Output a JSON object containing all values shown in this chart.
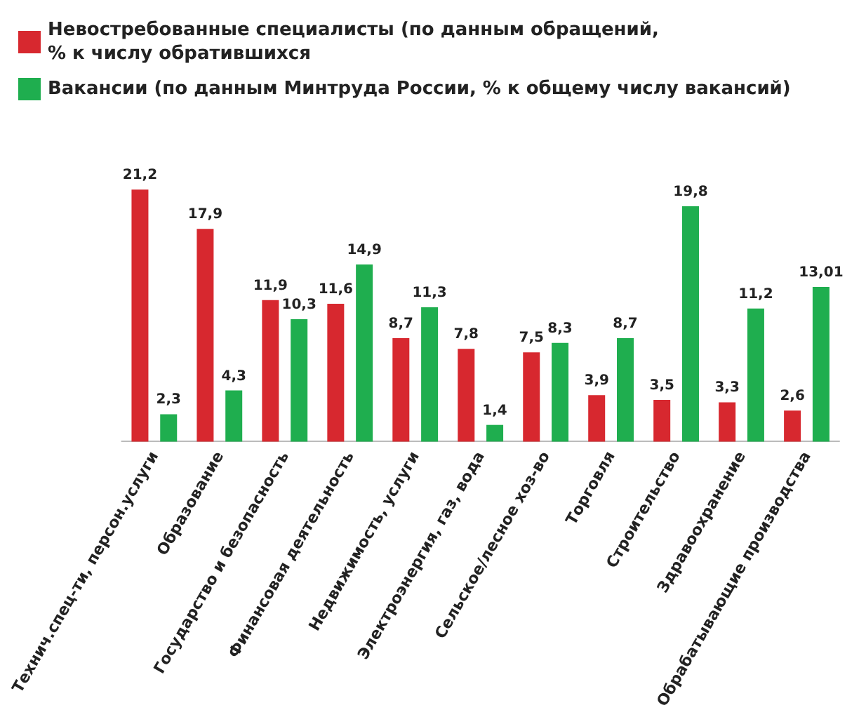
{
  "chart_data": {
    "type": "bar",
    "categories": [
      "Технич.спец-ти, персон.услуги",
      "Образование",
      "Государство и безопасность",
      "Финансовая деятельность",
      "Недвижимость, услуги",
      "Электроэнергия, газ, вода",
      "Сельское/лесное хоз-во",
      "Торговля",
      "Строительство",
      "Здравоохранение",
      "Обрабатывающие производства"
    ],
    "series": [
      {
        "name": "Невостребованные специалисты (по данным обращений, \n% к числу обратившихся",
        "color": "#d7282f",
        "values": [
          21.2,
          17.9,
          11.9,
          11.6,
          8.7,
          7.8,
          7.5,
          3.9,
          3.5,
          3.3,
          2.6
        ],
        "value_labels": [
          "21,2",
          "17,9",
          "11,9",
          "11,6",
          "8,7",
          "7,8",
          "7,5",
          "3,9",
          "3,5",
          "3,3",
          "2,6"
        ]
      },
      {
        "name": "Вакансии (по данным Минтруда России, % к общему числу вакансий)",
        "color": "#1fae4f",
        "values": [
          2.3,
          4.3,
          10.3,
          14.9,
          11.3,
          1.4,
          8.3,
          8.7,
          19.8,
          11.2,
          13.01
        ],
        "value_labels": [
          "2,3",
          "4,3",
          "10,3",
          "14,9",
          "11,3",
          "1,4",
          "8,3",
          "8,7",
          "19,8",
          "11,2",
          "13,01"
        ]
      }
    ],
    "legend": "top left",
    "tick_labels": "x"
  }
}
